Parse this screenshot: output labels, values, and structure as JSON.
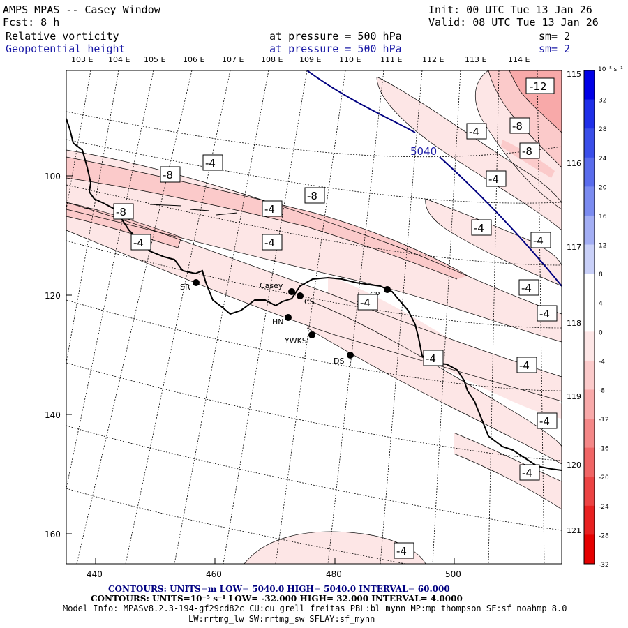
{
  "header": {
    "model": "AMPS MPAS -- Casey Window",
    "init": "Init: 00 UTC Tue 13 Jan 26",
    "forecast": "Fcst:    8 h",
    "valid": "Valid: 08 UTC Tue 13 Jan 26",
    "field1_name": "Relative vorticity",
    "field1_level": "at pressure =  500 hPa",
    "field1_smooth": "sm= 2",
    "field2_name": "Geopotential height",
    "field2_level": "at pressure =  500 hPa",
    "field2_smooth": "sm= 2"
  },
  "longitude_labels": [
    "103 E",
    "104 E",
    "105 E",
    "106 E",
    "107 E",
    "108 E",
    "109 E",
    "110 E",
    "111 E",
    "112 E",
    "113 E",
    "114 E"
  ],
  "right_latitude_labels": [
    "115 E",
    "116 E",
    "117 E",
    "118 E",
    "119 E",
    "120 E",
    "121 E"
  ],
  "x_axis_ticks": [
    "440",
    "460",
    "480",
    "500"
  ],
  "y_axis_ticks": [
    "100",
    "120",
    "140",
    "160"
  ],
  "colorbar": {
    "units": "10⁻⁵ s⁻¹",
    "tick_labels": [
      "32",
      "28",
      "24",
      "20",
      "16",
      "12",
      "8",
      "4",
      "0",
      "-4",
      "-8",
      "-12",
      "-16",
      "-20",
      "-24",
      "-28",
      "-32"
    ],
    "colors": [
      "#0000e6",
      "#1f2fe8",
      "#3a4ee9",
      "#5a6cec",
      "#7b8bf0",
      "#a3aef4",
      "#c9d0f8",
      "#ffffff",
      "#ffffff",
      "#fde6e6",
      "#fbcaca",
      "#f8a9a9",
      "#f48787",
      "#f06565",
      "#ec4343",
      "#e82020",
      "#e50000"
    ]
  },
  "stations": [
    {
      "name": "SR"
    },
    {
      "name": "Casey"
    },
    {
      "name": "CS"
    },
    {
      "name": "HN"
    },
    {
      "name": "CP"
    },
    {
      "name": "YWKS"
    },
    {
      "name": "DS"
    }
  ],
  "vorticity_labels": [
    "-12",
    "-8",
    "-8",
    "-4",
    "-4",
    "-8",
    "-8",
    "-8",
    "-4",
    "-4",
    "-4",
    "-4",
    "-4",
    "-4",
    "-4",
    "-4",
    "-4",
    "-4",
    "-4",
    "-4",
    "-4",
    "-4"
  ],
  "height_label": "5040",
  "footer": {
    "contours1": "CONTOURS:  UNITS=m  LOW=  5040.0        HIGH=  5040.0        INTERVAL=   60.000",
    "contours2": "CONTOURS:  UNITS=10⁻⁵ s⁻¹  LOW= -32.000       HIGH=  32.000       INTERVAL=   4.0000",
    "model_info": "Model Info: MPASv8.2.3-194-gf29cd82c CU:cu_grell_freitas PBL:bl_mynn MP:mp_thompson SF:sf_noahmp 8.0",
    "model_info2": "LW:rrtmg_lw SW:rrtmg_sw SFLAY:sf_mynn"
  }
}
